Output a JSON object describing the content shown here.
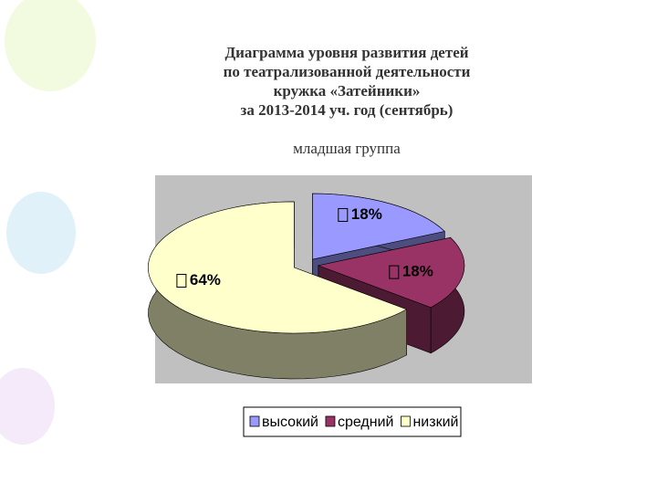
{
  "chart_data": {
    "type": "pie3d",
    "title": [
      "Диаграмма уровня развития детей",
      "по театрализованной   деятельности",
      "кружка «Затейники»",
      "за 2013-2014 уч. год (сентябрь)"
    ],
    "subtitle": "младшая группа",
    "categories": [
      "высокий",
      "средний",
      "низкий"
    ],
    "values": [
      18,
      18,
      64
    ],
    "value_labels": [
      "18%",
      "18%",
      "64%"
    ],
    "colors": [
      "#9999ff",
      "#993366",
      "#ffffcc"
    ],
    "legend": "bottom"
  }
}
